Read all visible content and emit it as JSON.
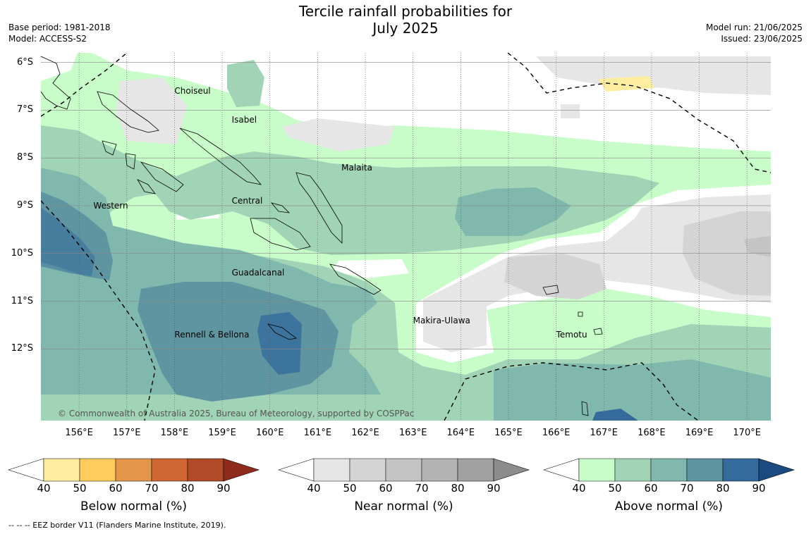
{
  "title": {
    "line1": "Tercile rainfall probabilities for",
    "line2": "July 2025"
  },
  "meta_left": {
    "base_period": "Base period: 1981-2018",
    "model": "Model: ACCESS-S2"
  },
  "meta_right": {
    "model_run": "Model run: 21/06/2025",
    "issued": "Issued: 23/06/2025"
  },
  "map": {
    "lon_range": [
      155.2,
      170.5
    ],
    "lat_range": [
      -13.5,
      -5.8
    ],
    "lat_labels": [
      {
        "lat": -6,
        "label": "6°S"
      },
      {
        "lat": -7,
        "label": "7°S"
      },
      {
        "lat": -8,
        "label": "8°S"
      },
      {
        "lat": -9,
        "label": "9°S"
      },
      {
        "lat": -10,
        "label": "10°S"
      },
      {
        "lat": -11,
        "label": "11°S"
      },
      {
        "lat": -12,
        "label": "12°S"
      }
    ],
    "lon_labels": [
      {
        "lon": 156,
        "label": "156°E"
      },
      {
        "lon": 157,
        "label": "157°E"
      },
      {
        "lon": 158,
        "label": "158°E"
      },
      {
        "lon": 159,
        "label": "159°E"
      },
      {
        "lon": 160,
        "label": "160°E"
      },
      {
        "lon": 161,
        "label": "161°E"
      },
      {
        "lon": 162,
        "label": "162°E"
      },
      {
        "lon": 163,
        "label": "163°E"
      },
      {
        "lon": 164,
        "label": "164°E"
      },
      {
        "lon": 165,
        "label": "165°E"
      },
      {
        "lon": 166,
        "label": "166°E"
      },
      {
        "lon": 167,
        "label": "167°E"
      },
      {
        "lon": 168,
        "label": "168°E"
      },
      {
        "lon": 169,
        "label": "169°E"
      },
      {
        "lon": 170,
        "label": "170°E"
      }
    ],
    "regions": [
      {
        "name": "Choiseul",
        "lon": 158.0,
        "lat": -6.6
      },
      {
        "name": "Isabel",
        "lon": 159.2,
        "lat": -7.2
      },
      {
        "name": "Malaita",
        "lon": 161.5,
        "lat": -8.2
      },
      {
        "name": "Western",
        "lon": 156.3,
        "lat": -9.0
      },
      {
        "name": "Central",
        "lon": 159.2,
        "lat": -8.9
      },
      {
        "name": "Guadalcanal",
        "lon": 159.2,
        "lat": -10.4
      },
      {
        "name": "Makira-Ulawa",
        "lon": 163.0,
        "lat": -11.4
      },
      {
        "name": "Rennell & Bellona",
        "lon": 158.0,
        "lat": -11.7
      },
      {
        "name": "Temotu",
        "lon": 166.0,
        "lat": -11.7
      }
    ],
    "copyright": "© Commonwealth of Australia 2025, Bureau of Meteorology, supported by COSPPac"
  },
  "colorbars": [
    {
      "name": "below",
      "title": "Below normal (%)",
      "ticks": [
        "40",
        "50",
        "60",
        "70",
        "80",
        "90"
      ],
      "colors": [
        "#ffeda0",
        "#fecc5c",
        "#e3964a",
        "#d06634",
        "#b04a28",
        "#8f2b1c"
      ]
    },
    {
      "name": "near",
      "title": "Near normal (%)",
      "ticks": [
        "40",
        "50",
        "60",
        "70",
        "80",
        "90"
      ],
      "colors": [
        "#e6e6e6",
        "#d4d4d4",
        "#c4c4c4",
        "#b3b3b3",
        "#a1a1a1",
        "#8c8c8c"
      ]
    },
    {
      "name": "above",
      "title": "Above normal (%)",
      "ticks": [
        "40",
        "50",
        "60",
        "70",
        "80",
        "90"
      ],
      "colors": [
        "#c8fcc8",
        "#a1d4b6",
        "#80b8ad",
        "#5e95a1",
        "#346b9c",
        "#1a4a80"
      ]
    }
  ],
  "footer": "--  --  -- EEZ border V11 (Flanders Marine Institute, 2019)."
}
